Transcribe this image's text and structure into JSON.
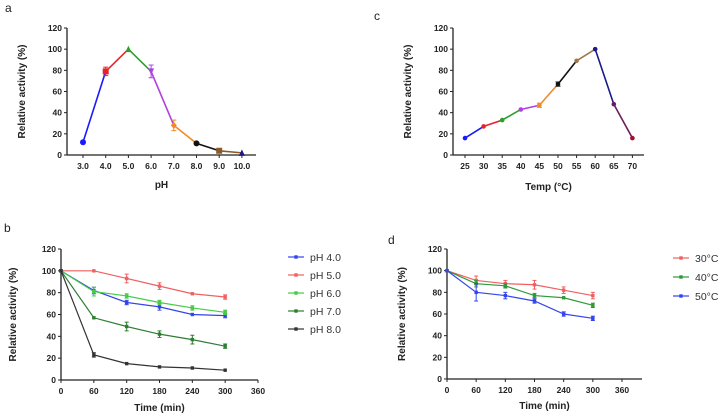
{
  "chart_data": [
    {
      "panel": "a",
      "type": "line",
      "xlabel": "pH",
      "ylabel": "Relative activity (%)",
      "categories": [
        "3.0",
        "4.0",
        "5.0",
        "6.0",
        "7.0",
        "8.0",
        "9.0",
        "10.0"
      ],
      "values": [
        12,
        79,
        100,
        79,
        28,
        11,
        4,
        2
      ],
      "errors": [
        0,
        4,
        1,
        6,
        5,
        1,
        1,
        1
      ],
      "point_colors": [
        "#1a1aff",
        "#e8202a",
        "#2ca02c",
        "#b040e0",
        "#f08a2a",
        "#111111",
        "#8b5a2b",
        "#1a1a8c"
      ],
      "ylim": [
        0,
        120
      ],
      "yticks": [
        0,
        20,
        40,
        60,
        80,
        100,
        120
      ]
    },
    {
      "panel": "c",
      "type": "line",
      "xlabel": "Temp (°C)",
      "ylabel": "Relative activity (%)",
      "categories": [
        "25",
        "30",
        "35",
        "40",
        "45",
        "50",
        "55",
        "60",
        "65",
        "70"
      ],
      "values": [
        16,
        27,
        33,
        43,
        47,
        67,
        89,
        100,
        48,
        16
      ],
      "errors": [
        1,
        1,
        1,
        1,
        2,
        2,
        1,
        1,
        1,
        1
      ],
      "point_colors": [
        "#1a1aff",
        "#e8202a",
        "#2ca02c",
        "#b040e0",
        "#f08a2a",
        "#111111",
        "#a0784a",
        "#1a1a8c",
        "#6b1f5a",
        "#a01030"
      ],
      "ylim": [
        0,
        120
      ],
      "yticks": [
        0,
        20,
        40,
        60,
        80,
        100,
        120
      ]
    },
    {
      "panel": "b",
      "type": "line",
      "xlabel": "Time (min)",
      "ylabel": "Relative activity (%)",
      "x": [
        0,
        60,
        120,
        180,
        240,
        300
      ],
      "xlim": [
        0,
        360
      ],
      "xticks": [
        0,
        60,
        120,
        180,
        240,
        300,
        360
      ],
      "ylim": [
        0,
        120
      ],
      "yticks": [
        0,
        20,
        40,
        60,
        80,
        100,
        120
      ],
      "legend": "right",
      "series": [
        {
          "name": "pH 4.0",
          "color": "#3344ee",
          "values": [
            100,
            82,
            71,
            67,
            60,
            59
          ],
          "errors": [
            1,
            3,
            2,
            3,
            1,
            2
          ]
        },
        {
          "name": "pH 5.0",
          "color": "#f06060",
          "values": [
            100,
            100,
            93,
            86,
            79,
            76
          ],
          "errors": [
            1,
            1,
            4,
            3,
            1,
            2
          ]
        },
        {
          "name": "pH 6.0",
          "color": "#44cc44",
          "values": [
            100,
            81,
            77,
            71,
            66,
            62
          ],
          "errors": [
            1,
            4,
            2,
            2,
            2,
            2
          ]
        },
        {
          "name": "pH 7.0",
          "color": "#2e7d32",
          "values": [
            100,
            57,
            49,
            42,
            37,
            31
          ],
          "errors": [
            1,
            1,
            4,
            3,
            4,
            2
          ]
        },
        {
          "name": "pH 8.0",
          "color": "#333333",
          "values": [
            100,
            23,
            15,
            12,
            11,
            9
          ],
          "errors": [
            1,
            2,
            1,
            1,
            1,
            1
          ]
        }
      ]
    },
    {
      "panel": "d",
      "type": "line",
      "xlabel": "Time (min)",
      "ylabel": "Relative activity (%)",
      "x": [
        0,
        60,
        120,
        180,
        240,
        300
      ],
      "xlim": [
        0,
        360
      ],
      "xticks": [
        0,
        60,
        120,
        180,
        240,
        300,
        360
      ],
      "ylim": [
        0,
        120
      ],
      "yticks": [
        0,
        20,
        40,
        60,
        80,
        100,
        120
      ],
      "legend": "right",
      "series": [
        {
          "name": "30°C",
          "color": "#f06060",
          "values": [
            100,
            91,
            88,
            87,
            82,
            77
          ],
          "errors": [
            1,
            4,
            3,
            4,
            3,
            3
          ]
        },
        {
          "name": "40°C",
          "color": "#2e9a3a",
          "values": [
            100,
            88,
            86,
            77,
            75,
            68
          ],
          "errors": [
            1,
            3,
            2,
            2,
            1,
            2
          ]
        },
        {
          "name": "50°C",
          "color": "#3344ee",
          "values": [
            100,
            80,
            77,
            72,
            60,
            56
          ],
          "errors": [
            1,
            8,
            3,
            2,
            2,
            2
          ]
        }
      ]
    }
  ]
}
